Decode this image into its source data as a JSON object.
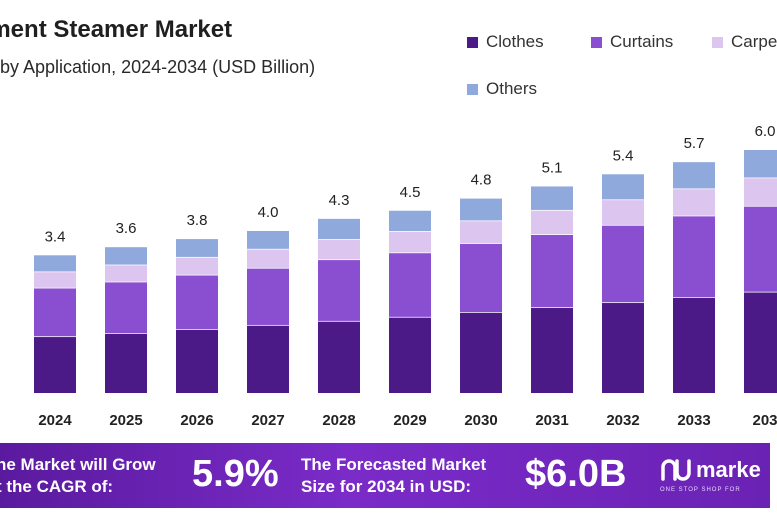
{
  "chart_data": {
    "type": "bar",
    "stacked": true,
    "title": "rment Steamer Market",
    "subtitle": "by Application, 2024-2034 (USD Billion)",
    "categories": [
      "2024",
      "2025",
      "2026",
      "2027",
      "2028",
      "2029",
      "2030",
      "2031",
      "2032",
      "2033",
      "203"
    ],
    "totals": [
      "3.4",
      "3.6",
      "3.8",
      "4.0",
      "4.3",
      "4.5",
      "4.8",
      "5.1",
      "5.4",
      "5.7",
      "6.0"
    ],
    "series": [
      {
        "name": "Clothes",
        "color": "#4b1a86",
        "values": [
          1.4,
          1.48,
          1.58,
          1.68,
          1.78,
          1.88,
          2.0,
          2.12,
          2.24,
          2.37,
          2.5
        ]
      },
      {
        "name": "Curtains",
        "color": "#8a4fd0",
        "values": [
          1.2,
          1.27,
          1.34,
          1.41,
          1.52,
          1.59,
          1.7,
          1.8,
          1.91,
          2.01,
          2.12
        ]
      },
      {
        "name": "Carpe",
        "color": "#dcc5ef",
        "values": [
          0.4,
          0.42,
          0.44,
          0.47,
          0.5,
          0.53,
          0.56,
          0.6,
          0.63,
          0.67,
          0.7
        ]
      },
      {
        "name": "Others",
        "color": "#8fa9dc",
        "values": [
          0.4,
          0.43,
          0.44,
          0.44,
          0.5,
          0.5,
          0.54,
          0.58,
          0.62,
          0.65,
          0.68
        ]
      }
    ],
    "ylim": [
      0,
      6.0
    ],
    "grid": false,
    "legend_position": "top-right"
  },
  "banner": {
    "cagr_line1": "he Market will Grow",
    "cagr_line2": "t the CAGR of:",
    "cagr_value": "5.9%",
    "forecast_line1": "The Forecasted Market",
    "forecast_line2": "Size for 2034 in USD:",
    "forecast_value": "$6.0B",
    "logo_word": "marke",
    "logo_tag": "ONE STOP SHOP FOR"
  }
}
